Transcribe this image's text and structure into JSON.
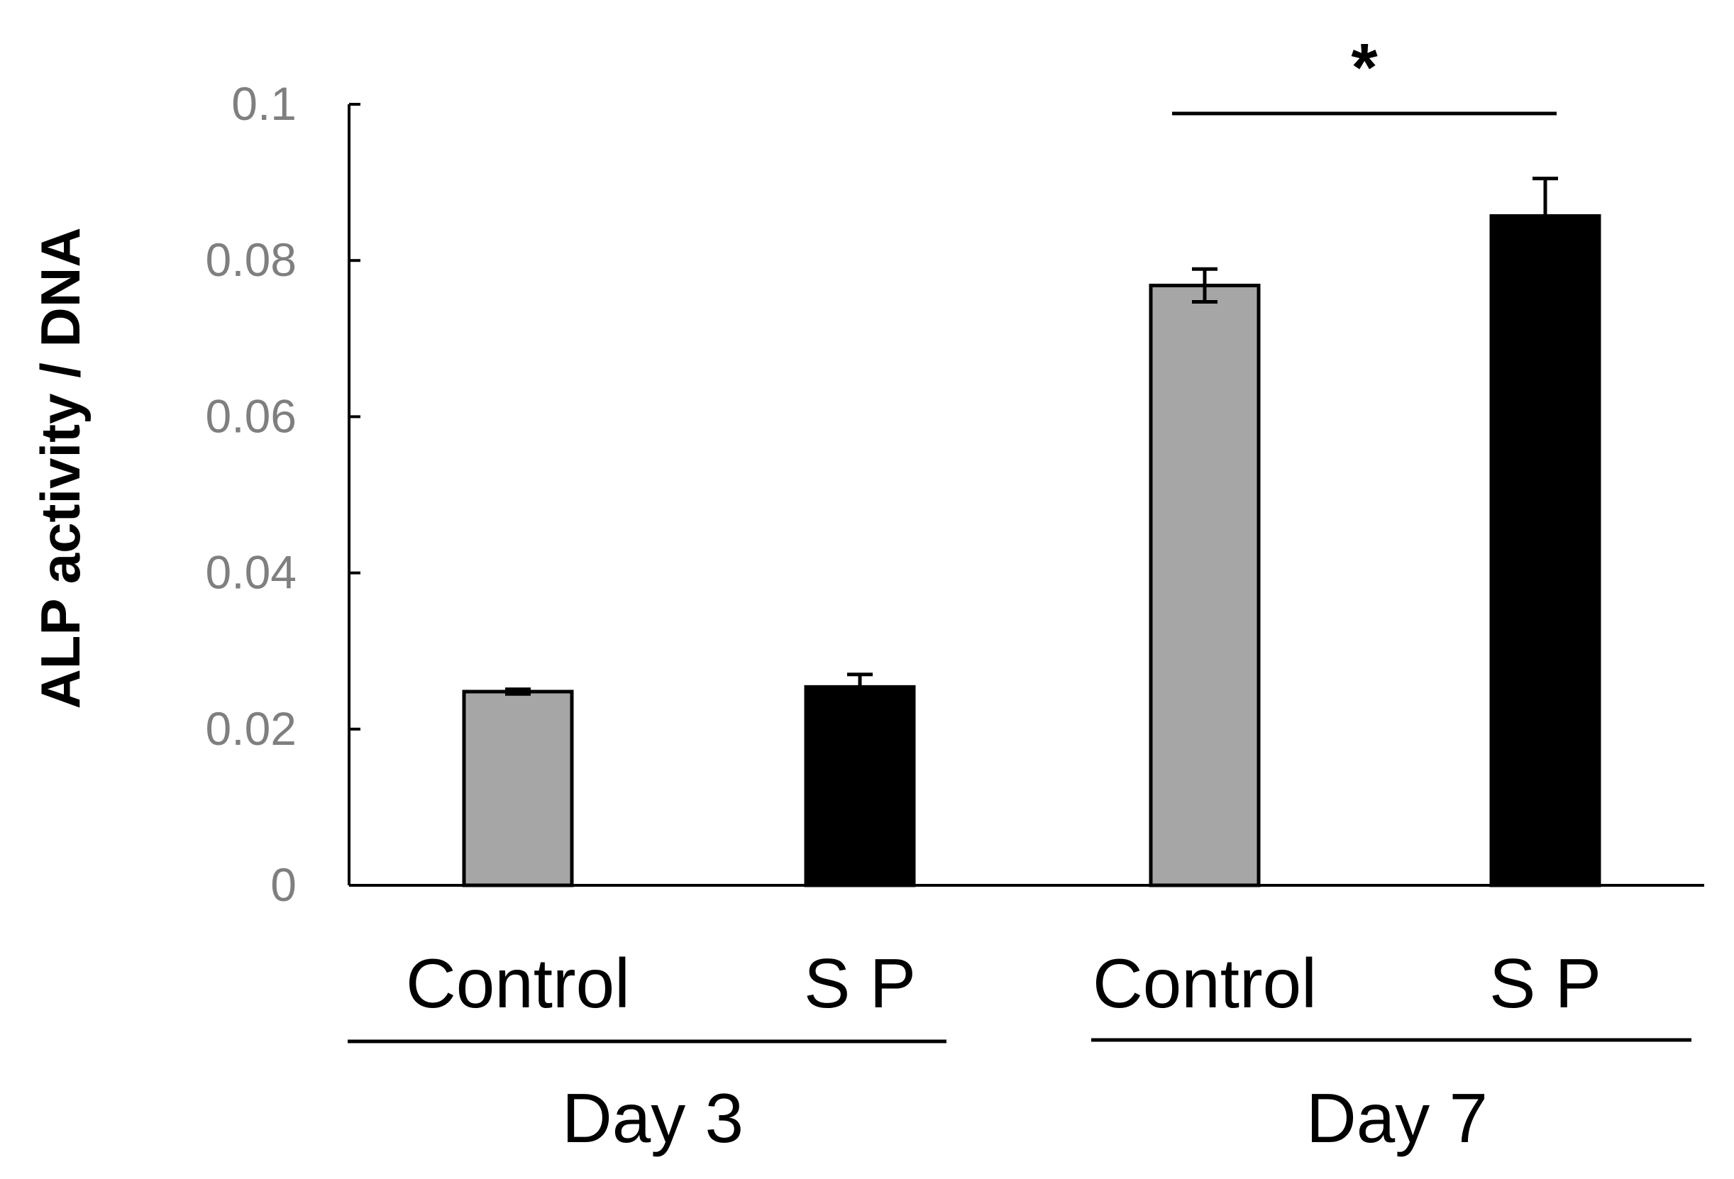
{
  "chart_data": {
    "type": "bar",
    "title": "",
    "xlabel": "",
    "ylabel": "ALP activity / DNA",
    "ylim": [
      0,
      0.1
    ],
    "yticks": [
      0,
      0.02,
      0.04,
      0.06,
      0.08,
      0.1
    ],
    "ytick_labels": [
      "0",
      "0.02",
      "0.04",
      "0.06",
      "0.08",
      "0.1"
    ],
    "categories": [
      "Control",
      "S P",
      "Control",
      "S P"
    ],
    "groups": [
      {
        "label": "Day 3",
        "members": [
          0,
          1
        ]
      },
      {
        "label": "Day 7",
        "members": [
          2,
          3
        ]
      }
    ],
    "bars": [
      {
        "label": "Control",
        "group": "Day 3",
        "value": 0.0248,
        "error": 0.0003,
        "color": "#a6a6a6"
      },
      {
        "label": "S P",
        "group": "Day 3",
        "value": 0.0254,
        "error": 0.0016,
        "color": "#000000"
      },
      {
        "label": "Control",
        "group": "Day 7",
        "value": 0.0768,
        "error": 0.0021,
        "color": "#a6a6a6"
      },
      {
        "label": "S P",
        "group": "Day 7",
        "value": 0.0857,
        "error": 0.0048,
        "color": "#000000"
      }
    ],
    "significance": [
      {
        "from": 2,
        "to": 3,
        "label": "*"
      }
    ]
  }
}
